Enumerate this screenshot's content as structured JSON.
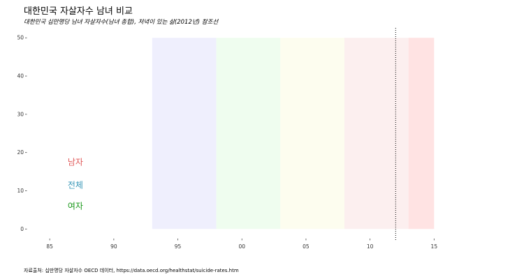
{
  "title": "대한민국 자살자수 남녀 비교",
  "subtitle": "대한민국 십만명당 남녀 자살자수(남녀 총합), 저녁이 있는 삶(2012년) 참조선",
  "caption": "자료출처: 십만명당 자살자수 OECD 데이터, https://data.oecd.org/healthstat/suicide-rates.htm",
  "chart_data": {
    "type": "line",
    "title": "대한민국 자살자수 남녀 비교",
    "xlabel": "",
    "ylabel": "",
    "xlim": [
      1983.3,
      2015.8
    ],
    "ylim": [
      -2.5,
      51.5
    ],
    "x_ticks": [
      1985,
      1990,
      1995,
      2000,
      2005,
      2010,
      2015
    ],
    "x_tick_labels": [
      "85",
      "90",
      "95",
      "00",
      "05",
      "10",
      "15"
    ],
    "y_ticks": [
      0,
      10,
      20,
      30,
      40,
      50
    ],
    "y_tick_labels": [
      "0",
      "10",
      "20",
      "30",
      "40",
      "50"
    ],
    "grid": false,
    "shaded_periods": [
      {
        "start": 1993,
        "end": 1998,
        "color": "#efeffd"
      },
      {
        "start": 1998,
        "end": 2003,
        "color": "#effdef"
      },
      {
        "start": 2003,
        "end": 2008,
        "color": "#fdfdef"
      },
      {
        "start": 2008,
        "end": 2013,
        "color": "#fcefef"
      },
      {
        "start": 2013,
        "end": 2015,
        "color": "#ffe3e3"
      }
    ],
    "reference_line": {
      "x": 2012,
      "style": "dotted",
      "color": "#000000"
    },
    "series": [
      {
        "name": "남자",
        "color": "#e05a5a",
        "label_x": 1986.4,
        "label_y": 17.5,
        "values": []
      },
      {
        "name": "전체",
        "color": "#3a98b8",
        "label_x": 1986.4,
        "label_y": 11.5,
        "values": []
      },
      {
        "name": "여자",
        "color": "#1e9a1e",
        "label_x": 1986.4,
        "label_y": 6,
        "values": []
      }
    ]
  }
}
